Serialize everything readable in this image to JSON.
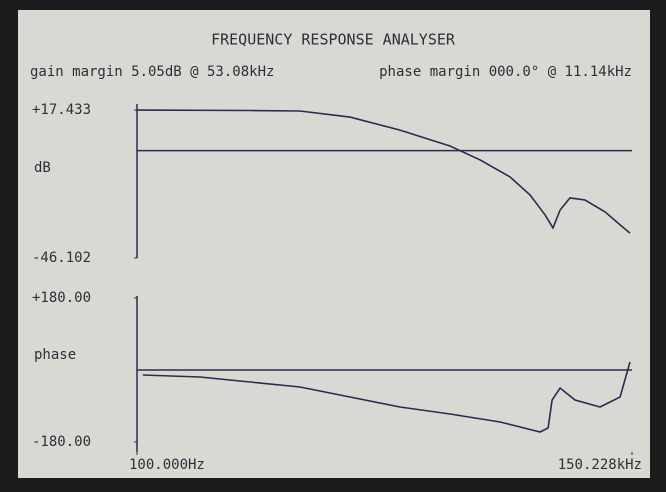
{
  "header": {
    "title": "FREQUENCY RESPONSE ANALYSER",
    "gain_margin": "gain margin 5.05dB @ 53.08kHz",
    "phase_margin": "phase margin 000.0° @ 11.14kHz"
  },
  "chart_data": [
    {
      "type": "line",
      "ylabel": "dB",
      "xscale": "log",
      "xlim": [
        100,
        150228
      ],
      "ylim": [
        -46.102,
        17.433
      ],
      "yticks": [
        -46.102,
        {
          "value": 17.433,
          "label": "+17.433"
        }
      ],
      "reference_line": 0,
      "color": "#2b2b4e",
      "x": [
        100,
        531,
        1112,
        2328,
        4875,
        10210,
        15920,
        24780,
        33270,
        41590,
        46770,
        51880,
        60140,
        75040,
        100900,
        126000,
        145900
      ],
      "values": [
        17.4,
        17.2,
        17,
        14.4,
        8.8,
        2,
        -4,
        -11.3,
        -19,
        -27.6,
        -33.2,
        -25.5,
        -20.3,
        -21.2,
        -26.3,
        -31.9,
        -35.4
      ]
    },
    {
      "type": "line",
      "ylabel": "phase",
      "xscale": "log",
      "xlim": [
        100,
        150228
      ],
      "xticks": [
        {
          "value": 100,
          "label": "100.000Hz"
        },
        {
          "value": 150228,
          "label": "150.228kHz"
        }
      ],
      "ylim": [
        -180,
        180
      ],
      "yticks": [
        {
          "value": -180,
          "label": "-180.00"
        },
        {
          "value": 180,
          "label": "+180.00"
        }
      ],
      "reference_line": 0,
      "color": "#2b2b4e",
      "x": [
        109,
        253.5,
        531,
        1112,
        2328,
        4875,
        10210,
        21380,
        38630,
        43450,
        46130,
        51880,
        64730,
        93760,
        126000,
        145900
      ],
      "values": [
        -12.5,
        -17.5,
        -30,
        -42.5,
        -67.5,
        -92.5,
        -110,
        -130,
        -155,
        -145,
        -75,
        -45,
        -75,
        -92.5,
        -67.5,
        20
      ]
    }
  ]
}
